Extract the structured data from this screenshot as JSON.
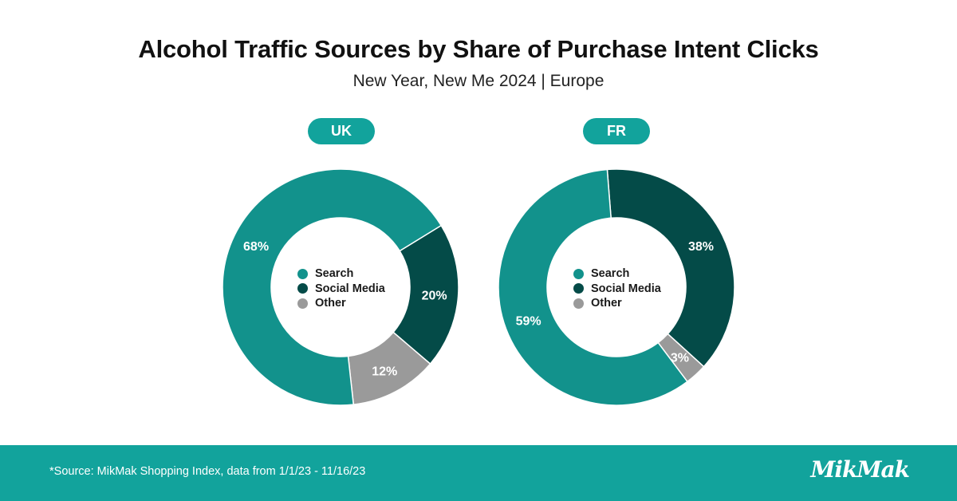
{
  "title": "Alcohol Traffic Sources by Share of Purchase Intent Clicks",
  "subtitle": "New Year, New Me 2024 | Europe",
  "colors": {
    "search": "#12928c",
    "social": "#044b48",
    "other": "#9a9a9a",
    "accent": "#12a39c"
  },
  "legend": [
    {
      "label": "Search",
      "color": "#12928c"
    },
    {
      "label": "Social Media",
      "color": "#044b48"
    },
    {
      "label": "Other",
      "color": "#9a9a9a"
    }
  ],
  "chart_data": [
    {
      "type": "pie",
      "title": "UK",
      "categories": [
        "Search",
        "Social Media",
        "Other"
      ],
      "values": [
        68,
        20,
        12
      ],
      "labels": [
        "68%",
        "20%",
        "12%"
      ]
    },
    {
      "type": "pie",
      "title": "FR",
      "categories": [
        "Search",
        "Social Media",
        "Other"
      ],
      "values": [
        59,
        38,
        3
      ],
      "labels": [
        "59%",
        "38%",
        "3%"
      ]
    }
  ],
  "footer": {
    "source": "*Source: MikMak Shopping Index, data from 1/1/23 - 11/16/23",
    "logo": "MikMak"
  }
}
